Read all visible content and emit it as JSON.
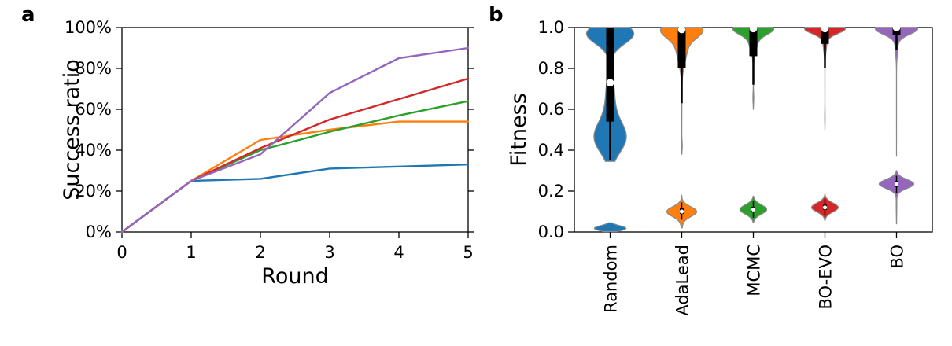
{
  "figure": {
    "panels": [
      {
        "label": "a"
      },
      {
        "label": "b"
      }
    ]
  },
  "chart_data": [
    {
      "type": "line",
      "panel": "a",
      "title": "",
      "xlabel": "Round",
      "ylabel": "Success ratio",
      "x": [
        0,
        1,
        2,
        3,
        4,
        5
      ],
      "xlim": [
        0,
        5
      ],
      "ylim": [
        0,
        100
      ],
      "xticks": [
        0,
        1,
        2,
        3,
        4,
        5
      ],
      "xtick_labels": [
        "0",
        "1",
        "2",
        "3",
        "4",
        "5"
      ],
      "yticks": [
        0,
        20,
        40,
        60,
        80,
        100
      ],
      "ytick_labels": [
        "0%",
        "20%",
        "40%",
        "60%",
        "80%",
        "100%"
      ],
      "grid": false,
      "legend": "none",
      "series": [
        {
          "name": "Random",
          "color": "#1f77b4",
          "values": [
            0,
            25,
            26,
            31,
            32,
            33
          ]
        },
        {
          "name": "AdaLead",
          "color": "#ff7f0e",
          "values": [
            0,
            25,
            45,
            50,
            54,
            54
          ]
        },
        {
          "name": "MCMC",
          "color": "#2ca02c",
          "values": [
            0,
            25,
            40,
            49,
            57,
            64
          ]
        },
        {
          "name": "BO-EVO",
          "color": "#d62728",
          "values": [
            0,
            25,
            41,
            55,
            65,
            75
          ]
        },
        {
          "name": "BO",
          "color": "#9467bd",
          "values": [
            0,
            25,
            38,
            68,
            85,
            90
          ]
        }
      ]
    },
    {
      "type": "violin",
      "panel": "b",
      "title": "",
      "xlabel": "",
      "ylabel": "Fitness",
      "ylim": [
        0,
        1.0
      ],
      "yticks": [
        0,
        0.2,
        0.4,
        0.6,
        0.8,
        1.0
      ],
      "ytick_labels": [
        "0.0",
        "0.2",
        "0.4",
        "0.6",
        "0.8",
        "1.0"
      ],
      "categories": [
        "Random",
        "AdaLead",
        "MCMC",
        "BO-EVO",
        "BO"
      ],
      "edge_color": "#8a8a8a",
      "violins": [
        {
          "name": "Random",
          "color": "#1f77b4",
          "clusters": [
            {
              "range": [
                0.345,
                1.0
              ],
              "hw": 30,
              "components": [
                {
                  "mu": 0.97,
                  "sigma": 0.05,
                  "w": 1.0
                },
                {
                  "mu": 0.46,
                  "sigma": 0.075,
                  "w": 0.95
                },
                {
                  "mu": 0.65,
                  "sigma": 0.12,
                  "w": 0.45
                }
              ],
              "box": {
                "q1": 0.54,
                "q3": 1.0,
                "med": 0.73,
                "wlo": 0.35,
                "whi": 1.0
              }
            },
            {
              "range": [
                0.002,
                0.045
              ],
              "hw": 20,
              "components": [
                {
                  "mu": 0.018,
                  "sigma": 0.013,
                  "w": 1.0
                }
              ],
              "box": null
            }
          ]
        },
        {
          "name": "AdaLead",
          "color": "#ff7f0e",
          "clusters": [
            {
              "range": [
                0.38,
                1.0
              ],
              "hw": 27,
              "components": [
                {
                  "mu": 0.99,
                  "sigma": 0.04,
                  "w": 1.0
                },
                {
                  "mu": 0.9,
                  "sigma": 0.07,
                  "w": 0.5
                },
                {
                  "mu": 0.63,
                  "sigma": 0.1,
                  "w": 0.022
                },
                {
                  "mu": 0.42,
                  "sigma": 0.025,
                  "w": 0.018
                }
              ],
              "box": {
                "q1": 0.8,
                "q3": 1.0,
                "med": 0.99,
                "wlo": 0.63,
                "whi": 1.0
              }
            },
            {
              "range": [
                0.02,
                0.18
              ],
              "hw": 19,
              "components": [
                {
                  "mu": 0.1,
                  "sigma": 0.024,
                  "w": 1.0
                },
                {
                  "mu": 0.05,
                  "sigma": 0.035,
                  "w": 0.08
                }
              ],
              "box": {
                "q1": 0.088,
                "q3": 0.115,
                "med": 0.1,
                "wlo": 0.06,
                "whi": 0.145
              }
            }
          ]
        },
        {
          "name": "MCMC",
          "color": "#2ca02c",
          "clusters": [
            {
              "range": [
                0.6,
                1.0
              ],
              "hw": 26,
              "components": [
                {
                  "mu": 0.995,
                  "sigma": 0.028,
                  "w": 1.0
                },
                {
                  "mu": 0.93,
                  "sigma": 0.045,
                  "w": 0.35
                },
                {
                  "mu": 0.8,
                  "sigma": 0.1,
                  "w": 0.02
                },
                {
                  "mu": 0.655,
                  "sigma": 0.025,
                  "w": 0.02
                }
              ],
              "box": {
                "q1": 0.86,
                "q3": 1.0,
                "med": 0.995,
                "wlo": 0.72,
                "whi": 1.0
              }
            },
            {
              "range": [
                0.045,
                0.175
              ],
              "hw": 17,
              "components": [
                {
                  "mu": 0.11,
                  "sigma": 0.023,
                  "w": 1.0
                }
              ],
              "box": {
                "q1": 0.098,
                "q3": 0.123,
                "med": 0.11,
                "wlo": 0.07,
                "whi": 0.15
              }
            }
          ]
        },
        {
          "name": "BO-EVO",
          "color": "#d62728",
          "clusters": [
            {
              "range": [
                0.5,
                1.0
              ],
              "hw": 26,
              "components": [
                {
                  "mu": 0.995,
                  "sigma": 0.024,
                  "w": 1.0
                },
                {
                  "mu": 0.94,
                  "sigma": 0.05,
                  "w": 0.22
                },
                {
                  "mu": 0.74,
                  "sigma": 0.12,
                  "w": 0.018
                },
                {
                  "mu": 0.56,
                  "sigma": 0.03,
                  "w": 0.012
                }
              ],
              "box": {
                "q1": 0.92,
                "q3": 1.0,
                "med": 0.995,
                "wlo": 0.8,
                "whi": 1.0
              }
            },
            {
              "range": [
                0.055,
                0.185
              ],
              "hw": 17,
              "components": [
                {
                  "mu": 0.12,
                  "sigma": 0.022,
                  "w": 1.0
                }
              ],
              "box": {
                "q1": 0.108,
                "q3": 0.133,
                "med": 0.12,
                "wlo": 0.08,
                "whi": 0.16
              }
            }
          ]
        },
        {
          "name": "BO",
          "color": "#9467bd",
          "clusters": [
            {
              "range": [
                0.37,
                1.0
              ],
              "hw": 27,
              "components": [
                {
                  "mu": 0.995,
                  "sigma": 0.028,
                  "w": 1.0
                },
                {
                  "mu": 0.92,
                  "sigma": 0.05,
                  "w": 0.12
                },
                {
                  "mu": 0.65,
                  "sigma": 0.15,
                  "w": 0.015
                }
              ],
              "box": {
                "q1": 0.965,
                "q3": 1.0,
                "med": 1.0,
                "wlo": 0.89,
                "whi": 1.0
              }
            },
            {
              "range": [
                0.04,
                0.3
              ],
              "hw": 22,
              "components": [
                {
                  "mu": 0.235,
                  "sigma": 0.022,
                  "w": 1.0
                },
                {
                  "mu": 0.14,
                  "sigma": 0.06,
                  "w": 0.05
                }
              ],
              "box": {
                "q1": 0.22,
                "q3": 0.25,
                "med": 0.235,
                "wlo": 0.19,
                "whi": 0.275
              }
            }
          ]
        }
      ]
    }
  ]
}
